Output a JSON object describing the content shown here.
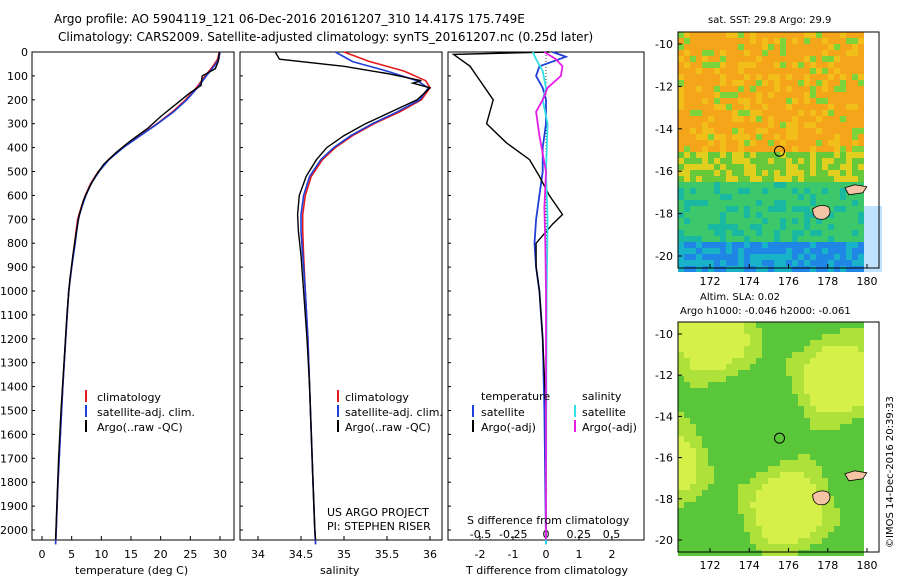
{
  "header": {
    "line1": "Argo profile: AO 5904119_121 06-Dec-2016 20161207_310 14.417S 175.749E",
    "line2": "Climatology: CARS2009. Satellite-adjusted climatology: synTS_20161207.nc (0.25d later)"
  },
  "depth_ticks": [
    "0",
    "100",
    "200",
    "300",
    "400",
    "500",
    "600",
    "700",
    "800",
    "900",
    "1000",
    "1100",
    "1200",
    "1300",
    "1400",
    "1500",
    "1600",
    "1700",
    "1800",
    "1900",
    "2000"
  ],
  "colors": {
    "climatology": "#e41a1c",
    "satellite_adj": "#1f3fd6",
    "argo": "#000000",
    "salinity_sat": "#33e0e6",
    "salinity_argo": "#e61ee6",
    "text": "#000000"
  },
  "panels": {
    "temperature": {
      "xlabel": "temperature (deg C)",
      "ticks": [
        "0",
        "5",
        "10",
        "15",
        "20",
        "25",
        "30"
      ],
      "legend": [
        "climatology",
        "satellite-adj. clim.",
        "Argo(..raw -QC)"
      ]
    },
    "salinity": {
      "xlabel": "salinity",
      "ticks": [
        "34",
        "34.5",
        "35",
        "35.5",
        "36"
      ],
      "legend": [
        "climatology",
        "satellite-adj. clim.",
        "Argo(..raw -QC)"
      ],
      "credit1": "US ARGO PROJECT",
      "credit2": "PI: STEPHEN RISER"
    },
    "difference": {
      "xlabel": "T difference from climatology",
      "top_label": "S difference from climatology",
      "s_ticks": [
        "-0.5",
        "-0.25",
        "0",
        "0.25",
        "0.5"
      ],
      "t_ticks": [
        "-2",
        "-1",
        "0",
        "1",
        "2"
      ],
      "legend_temp_title": "temperature",
      "legend_sal_title": "salinity",
      "legend_temp": [
        "satellite",
        "Argo(-adj)"
      ],
      "legend_sal": [
        "satellite",
        "Argo(-adj)"
      ]
    },
    "sst_map": {
      "title": "sat. SST: 29.8 Argo: 29.9",
      "lat_ticks": [
        "-10",
        "-12",
        "-14",
        "-16",
        "-18",
        "-20"
      ],
      "lon_ticks": [
        "172",
        "174",
        "176",
        "178",
        "180"
      ]
    },
    "sla_map": {
      "title1": "Altim. SLA: 0.02",
      "title2": "Argo h1000: -0.046 h2000: -0.061",
      "lat_ticks": [
        "-10",
        "-12",
        "-14",
        "-16",
        "-18",
        "-20"
      ],
      "lon_ticks": [
        "172",
        "174",
        "176",
        "178",
        "180"
      ]
    }
  },
  "watermark": "©IMOS 14-Dec-2016 20:39:33",
  "chart_data": [
    {
      "type": "line",
      "title": "",
      "xlabel": "temperature (deg C)",
      "ylabel": "",
      "xlim": [
        -2,
        32
      ],
      "ylim": [
        2070,
        0
      ],
      "series": [
        {
          "name": "climatology",
          "points": [
            [
              29.9,
              0
            ],
            [
              29.6,
              30
            ],
            [
              28.8,
              60
            ],
            [
              27.5,
              100
            ],
            [
              26.0,
              150
            ],
            [
              24.2,
              200
            ],
            [
              22.0,
              250
            ],
            [
              19.4,
              300
            ],
            [
              16.5,
              350
            ],
            [
              13.6,
              400
            ],
            [
              11.2,
              450
            ],
            [
              9.5,
              500
            ],
            [
              8.2,
              550
            ],
            [
              7.3,
              600
            ],
            [
              6.6,
              650
            ],
            [
              6.0,
              700
            ],
            [
              5.5,
              800
            ],
            [
              5.0,
              900
            ],
            [
              4.5,
              1000
            ],
            [
              4.0,
              1200
            ],
            [
              3.5,
              1400
            ],
            [
              3.1,
              1600
            ],
            [
              2.7,
              1800
            ],
            [
              2.4,
              2000
            ],
            [
              2.3,
              2060
            ]
          ]
        },
        {
          "name": "satellite-adj. clim.",
          "points": [
            [
              30.0,
              0
            ],
            [
              29.8,
              30
            ],
            [
              29.0,
              60
            ],
            [
              27.7,
              100
            ],
            [
              26.2,
              150
            ],
            [
              24.4,
              200
            ],
            [
              22.2,
              250
            ],
            [
              19.5,
              300
            ],
            [
              16.6,
              350
            ],
            [
              13.7,
              400
            ],
            [
              11.3,
              450
            ],
            [
              9.6,
              500
            ],
            [
              8.3,
              550
            ],
            [
              7.4,
              600
            ],
            [
              6.7,
              650
            ],
            [
              6.1,
              700
            ],
            [
              5.6,
              800
            ],
            [
              5.0,
              900
            ],
            [
              4.5,
              1000
            ],
            [
              4.0,
              1200
            ],
            [
              3.5,
              1400
            ],
            [
              3.1,
              1600
            ],
            [
              2.7,
              1800
            ],
            [
              2.4,
              2000
            ],
            [
              2.3,
              2060
            ]
          ]
        },
        {
          "name": "Argo(..raw -QC)",
          "points": [
            [
              29.9,
              0
            ],
            [
              29.7,
              40
            ],
            [
              29.2,
              70
            ],
            [
              27.0,
              100
            ],
            [
              26.8,
              140
            ],
            [
              25.0,
              170
            ],
            [
              22.5,
              220
            ],
            [
              20.0,
              270
            ],
            [
              17.8,
              320
            ],
            [
              15.0,
              370
            ],
            [
              12.5,
              420
            ],
            [
              10.4,
              470
            ],
            [
              9.0,
              520
            ],
            [
              7.9,
              570
            ],
            [
              7.0,
              620
            ],
            [
              6.3,
              680
            ],
            [
              5.8,
              750
            ],
            [
              5.2,
              850
            ],
            [
              4.7,
              950
            ],
            [
              4.2,
              1100
            ],
            [
              3.7,
              1300
            ],
            [
              3.2,
              1500
            ],
            [
              2.8,
              1700
            ],
            [
              2.5,
              1900
            ],
            [
              2.3,
              2040
            ]
          ]
        }
      ]
    },
    {
      "type": "line",
      "title": "",
      "xlabel": "salinity",
      "ylabel": "",
      "xlim": [
        33.75,
        36.15
      ],
      "ylim": [
        2070,
        0
      ],
      "series": [
        {
          "name": "climatology",
          "points": [
            [
              35.0,
              0
            ],
            [
              35.3,
              40
            ],
            [
              35.7,
              80
            ],
            [
              35.95,
              120
            ],
            [
              36.0,
              150
            ],
            [
              35.9,
              200
            ],
            [
              35.65,
              250
            ],
            [
              35.35,
              300
            ],
            [
              35.1,
              350
            ],
            [
              34.9,
              400
            ],
            [
              34.75,
              450
            ],
            [
              34.62,
              520
            ],
            [
              34.55,
              600
            ],
            [
              34.52,
              680
            ],
            [
              34.52,
              750
            ],
            [
              34.53,
              850
            ],
            [
              34.55,
              1000
            ],
            [
              34.58,
              1200
            ],
            [
              34.6,
              1400
            ],
            [
              34.62,
              1600
            ],
            [
              34.64,
              1800
            ],
            [
              34.66,
              2000
            ],
            [
              34.67,
              2060
            ]
          ]
        },
        {
          "name": "satellite-adj. clim.",
          "points": [
            [
              34.9,
              0
            ],
            [
              35.1,
              40
            ],
            [
              35.5,
              80
            ],
            [
              35.85,
              120
            ],
            [
              35.98,
              150
            ],
            [
              35.88,
              200
            ],
            [
              35.62,
              250
            ],
            [
              35.33,
              300
            ],
            [
              35.08,
              350
            ],
            [
              34.88,
              400
            ],
            [
              34.73,
              450
            ],
            [
              34.6,
              520
            ],
            [
              34.53,
              600
            ],
            [
              34.5,
              680
            ],
            [
              34.5,
              750
            ],
            [
              34.52,
              850
            ],
            [
              34.55,
              1000
            ],
            [
              34.58,
              1200
            ],
            [
              34.6,
              1400
            ],
            [
              34.62,
              1600
            ],
            [
              34.64,
              1800
            ],
            [
              34.66,
              2000
            ],
            [
              34.67,
              2060
            ]
          ]
        },
        {
          "name": "Argo(..raw -QC)",
          "points": [
            [
              34.2,
              0
            ],
            [
              34.25,
              30
            ],
            [
              35.0,
              60
            ],
            [
              35.5,
              90
            ],
            [
              35.9,
              120
            ],
            [
              35.8,
              130
            ],
            [
              36.0,
              150
            ],
            [
              35.85,
              200
            ],
            [
              35.55,
              250
            ],
            [
              35.25,
              300
            ],
            [
              35.0,
              350
            ],
            [
              34.8,
              400
            ],
            [
              34.68,
              450
            ],
            [
              34.56,
              520
            ],
            [
              34.48,
              600
            ],
            [
              34.46,
              680
            ],
            [
              34.47,
              750
            ],
            [
              34.5,
              850
            ],
            [
              34.53,
              1000
            ],
            [
              34.57,
              1200
            ],
            [
              34.6,
              1400
            ],
            [
              34.62,
              1600
            ],
            [
              34.64,
              1800
            ],
            [
              34.66,
              2000
            ],
            [
              34.67,
              2040
            ]
          ]
        }
      ]
    },
    {
      "type": "line",
      "title": "",
      "xlabel": "T difference from climatology",
      "ylabel": "",
      "xlim": [
        -3,
        3
      ],
      "ylim": [
        2070,
        0
      ],
      "series": [
        {
          "name": "temperature satellite",
          "points": [
            [
              0.2,
              0
            ],
            [
              0.6,
              20
            ],
            [
              -0.2,
              60
            ],
            [
              -0.3,
              100
            ],
            [
              -0.1,
              150
            ],
            [
              0.0,
              200
            ],
            [
              0.0,
              300
            ],
            [
              -0.1,
              400
            ],
            [
              -0.1,
              500
            ],
            [
              -0.2,
              600
            ],
            [
              -0.3,
              700
            ],
            [
              -0.35,
              800
            ],
            [
              -0.3,
              900
            ],
            [
              -0.2,
              1000
            ],
            [
              -0.1,
              1200
            ],
            [
              -0.05,
              1500
            ],
            [
              0.0,
              2060
            ]
          ]
        },
        {
          "name": "temperature Argo(-adj)",
          "points": [
            [
              0.1,
              0
            ],
            [
              -2.8,
              10
            ],
            [
              -2.3,
              60
            ],
            [
              -2.1,
              100
            ],
            [
              -1.6,
              200
            ],
            [
              -1.8,
              300
            ],
            [
              -1.2,
              380
            ],
            [
              -0.5,
              450
            ],
            [
              -0.2,
              520
            ],
            [
              0.1,
              600
            ],
            [
              0.5,
              680
            ],
            [
              0.2,
              720
            ],
            [
              -0.3,
              800
            ],
            [
              -0.3,
              900
            ],
            [
              -0.2,
              1000
            ],
            [
              -0.1,
              1200
            ],
            [
              0.0,
              1500
            ],
            [
              0.0,
              2040
            ]
          ]
        },
        {
          "name": "salinity satellite",
          "points": [
            [
              -0.4,
              0
            ],
            [
              -0.3,
              30
            ],
            [
              -0.1,
              80
            ],
            [
              0.0,
              150
            ],
            [
              -0.1,
              200
            ],
            [
              0.05,
              300
            ],
            [
              0.0,
              500
            ],
            [
              0.05,
              700
            ],
            [
              0.02,
              1000
            ],
            [
              0.01,
              1500
            ],
            [
              0.0,
              2060
            ]
          ]
        },
        {
          "name": "salinity Argo(-adj)",
          "points": [
            [
              -0.05,
              0
            ],
            [
              0.3,
              30
            ],
            [
              0.5,
              60
            ],
            [
              0.45,
              100
            ],
            [
              0.05,
              150
            ],
            [
              -0.1,
              200
            ],
            [
              -0.3,
              250
            ],
            [
              -0.2,
              350
            ],
            [
              0.0,
              500
            ],
            [
              -0.05,
              650
            ],
            [
              -0.02,
              800
            ],
            [
              0.0,
              1000
            ],
            [
              0.0,
              1500
            ],
            [
              0.0,
              2040
            ]
          ]
        }
      ]
    }
  ]
}
